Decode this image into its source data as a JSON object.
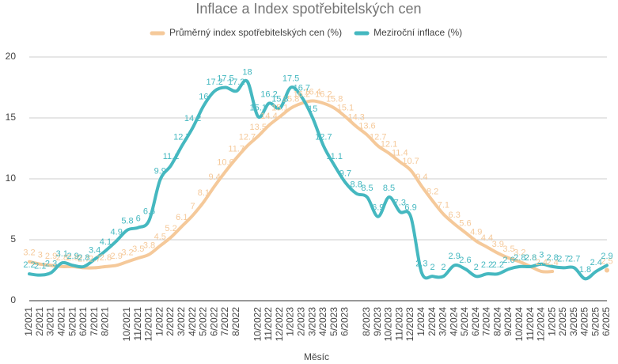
{
  "chart_data": {
    "type": "line",
    "title": "Inflace a Index spotřebitelských cen",
    "x_label": "Měsíc",
    "categories": [
      "1/2021",
      "2/2021",
      "3/2021",
      "4/2021",
      "5/2021",
      "6/2021",
      "7/2021",
      "8/2021",
      null,
      "10/2021",
      "11/2021",
      "12/2021",
      "1/2022",
      "2/2022",
      "3/2022",
      "4/2022",
      "5/2022",
      "6/2022",
      "7/2022",
      "8/2022",
      null,
      "10/2022",
      "11/2022",
      "12/2022",
      "1/2023",
      "2/2023",
      "3/2023",
      "4/2023",
      "5/2023",
      "6/2023",
      null,
      "8/2023",
      "9/2023",
      "10/2023",
      "11/2023",
      "12/2023",
      "1/2024",
      "2/2024",
      "3/2024",
      "4/2024",
      "5/2024",
      "6/2024",
      "7/2024",
      "8/2024",
      "9/2024",
      "10/2024",
      "11/2024",
      "12/2024",
      "1/2025",
      "2/2025",
      "3/2025",
      "4/2025",
      "5/2025",
      "6/2025"
    ],
    "series": [
      {
        "name": "Průměrný index spotřebitelských cen (%)",
        "color": "#f5c99a",
        "values": [
          3.2,
          3.0,
          2.9,
          2.8,
          2.8,
          2.7,
          2.7,
          2.8,
          2.9,
          3.2,
          3.5,
          3.8,
          4.5,
          5.2,
          6.1,
          7,
          8.1,
          9.4,
          10.6,
          11.7,
          12.7,
          13.5,
          14.4,
          15.1,
          15.8,
          16.2,
          16.4,
          16.2,
          15.8,
          15.1,
          14.3,
          13.6,
          12.7,
          12.1,
          11.4,
          10.7,
          9.4,
          8.2,
          7.1,
          6.3,
          5.6,
          4.9,
          4.4,
          3.9,
          3.5,
          3.2,
          2.8,
          2.4,
          2.4,
          null,
          null,
          null,
          null,
          2.5
        ]
      },
      {
        "name": "Meziroční inflace (%)",
        "color": "#45b8c0",
        "values": [
          2.2,
          2.1,
          2.3,
          3.1,
          2.9,
          2.8,
          3.4,
          4.1,
          4.9,
          5.8,
          6,
          6.6,
          9.9,
          11.1,
          12.7,
          14.2,
          16,
          17.2,
          17.5,
          17.2,
          18,
          15.1,
          16.2,
          15.8,
          17.5,
          16.7,
          15,
          12.7,
          11.1,
          9.7,
          8.8,
          8.5,
          6.9,
          8.5,
          7.3,
          6.9,
          2.3,
          2,
          2,
          2.9,
          2.6,
          2,
          2.2,
          2.2,
          2.6,
          2.8,
          2.8,
          3,
          2.8,
          2.7,
          2.7,
          1.8,
          2.4,
          2.9
        ]
      }
    ],
    "ylim": [
      0,
      20
    ],
    "yticks": [
      0,
      5,
      10,
      15,
      20
    ],
    "grid": true,
    "legend": "top"
  }
}
